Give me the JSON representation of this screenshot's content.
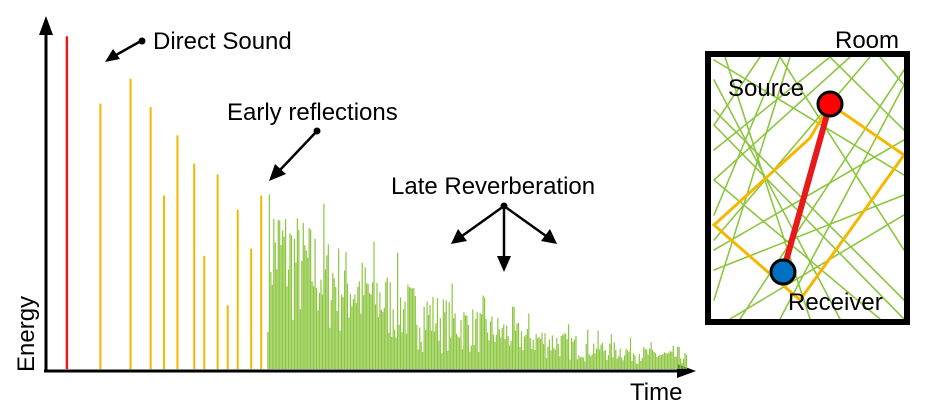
{
  "labels": {
    "direct_sound": "Direct Sound",
    "early_reflections": "Early reflections",
    "late_reverberation": "Late Reverberation",
    "energy_axis": "Energy",
    "time_axis": "Time",
    "room": "Room",
    "source": "Source",
    "receiver": "Receiver"
  },
  "colors": {
    "direct": "#e8191a",
    "early": "#f5b800",
    "late": "#8cc63f",
    "source_fill": "#ff0000",
    "receiver_fill": "#0070c0",
    "path_direct": "#e8191a",
    "path_early": "#f5b800",
    "path_late": "#8cc63f"
  },
  "chart_data": {
    "type": "bar",
    "title": "",
    "xlabel": "Time",
    "ylabel": "Energy",
    "ylim": [
      0,
      1
    ],
    "series": [
      {
        "name": "Direct Sound",
        "t": [
          0.07
        ],
        "values": [
          0.94
        ]
      },
      {
        "name": "Early reflections",
        "t": [
          0.12,
          0.165,
          0.195,
          0.215,
          0.235,
          0.26,
          0.275,
          0.295,
          0.31,
          0.325,
          0.345,
          0.36
        ],
        "values": [
          0.75,
          0.82,
          0.74,
          0.49,
          0.66,
          0.58,
          0.32,
          0.55,
          0.18,
          0.45,
          0.34,
          0.49
        ]
      }
    ],
    "late_reverberation": {
      "t_start": 0.37,
      "t_end": 0.995,
      "peak": 0.48,
      "end": 0.04
    }
  }
}
